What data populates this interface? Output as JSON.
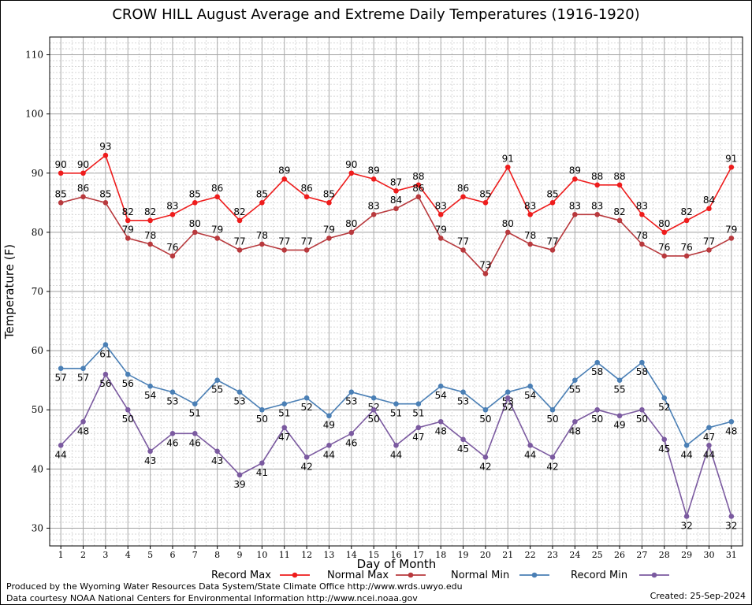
{
  "chart_data": {
    "type": "line",
    "title": "CROW HILL August Average and Extreme Daily Temperatures (1916-1920)",
    "xlabel": "Day of Month",
    "ylabel": "Temperature (F)",
    "ylim": [
      27,
      113
    ],
    "yticks": [
      30,
      40,
      50,
      60,
      70,
      80,
      90,
      100,
      110
    ],
    "grid": true,
    "legend_position": "bottom",
    "x": [
      1,
      2,
      3,
      4,
      5,
      6,
      7,
      8,
      9,
      10,
      11,
      12,
      13,
      14,
      15,
      16,
      17,
      18,
      19,
      20,
      21,
      22,
      23,
      24,
      25,
      26,
      27,
      28,
      29,
      30,
      31
    ],
    "series": [
      {
        "name": "Record Max",
        "color": "#ee1c1c",
        "values": [
          90,
          90,
          93,
          82,
          82,
          83,
          85,
          86,
          82,
          85,
          89,
          86,
          85,
          90,
          89,
          87,
          88,
          83,
          86,
          85,
          91,
          83,
          85,
          89,
          88,
          88,
          83,
          80,
          82,
          84,
          91
        ]
      },
      {
        "name": "Normal Max",
        "color": "#b8393d",
        "values": [
          85,
          86,
          85,
          79,
          78,
          76,
          80,
          79,
          77,
          78,
          77,
          77,
          79,
          80,
          83,
          84,
          86,
          79,
          77,
          73,
          80,
          78,
          77,
          83,
          83,
          82,
          78,
          76,
          76,
          77,
          79
        ]
      },
      {
        "name": "Normal Min",
        "color": "#4a7fb5",
        "values": [
          57,
          57,
          61,
          56,
          54,
          53,
          51,
          55,
          53,
          50,
          51,
          52,
          49,
          53,
          52,
          51,
          51,
          54,
          53,
          50,
          53,
          54,
          50,
          55,
          58,
          55,
          58,
          52,
          44,
          47,
          48
        ]
      },
      {
        "name": "Record Min",
        "color": "#7b5aa0",
        "values": [
          44,
          48,
          56,
          50,
          43,
          46,
          46,
          43,
          39,
          41,
          47,
          42,
          44,
          46,
          50,
          44,
          47,
          48,
          45,
          42,
          52,
          44,
          42,
          48,
          50,
          49,
          50,
          45,
          32,
          44,
          32
        ]
      }
    ]
  },
  "footer": {
    "line1": "Produced by the Wyoming Water Resources Data System/State Climate Office http://www.wrds.uwyo.edu",
    "line2": "Data courtesy NOAA National Centers for Environmental Information http://www.ncei.noaa.gov",
    "created": "Created:  25-Sep-2024"
  }
}
